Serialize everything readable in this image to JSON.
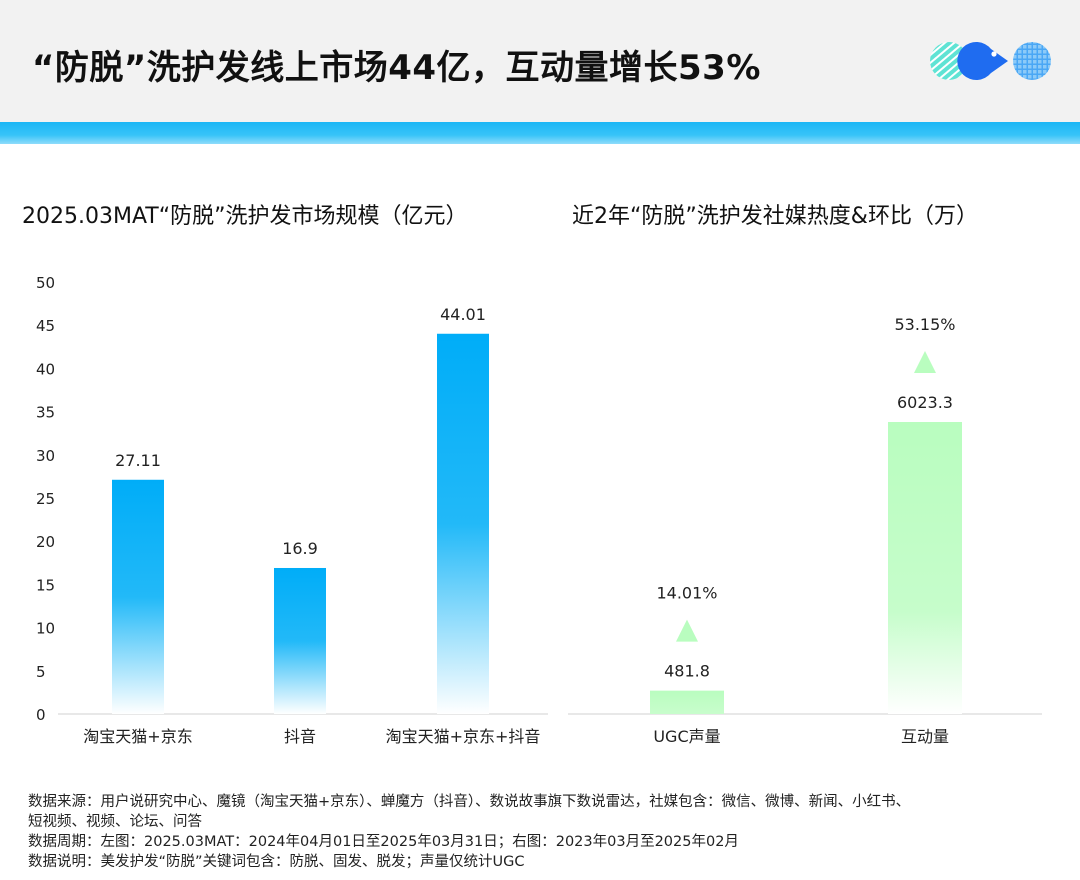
{
  "header": {
    "title": "“防脱”洗护发线上市场44亿，互动量增长53%"
  },
  "colors": {
    "accent_blue": "#00adf8",
    "accent_green": "#b9fdbf",
    "logo_teal": "#5fe3d4",
    "logo_blue": "#1f6cf0",
    "logo_light_blue": "#4aa7f5"
  },
  "chart_data": [
    {
      "type": "bar",
      "title": "2025.03MAT“防脱”洗护发市场规模（亿元）",
      "categories": [
        "淘宝天猫+京东",
        "抖音",
        "淘宝天猫+京东+抖音"
      ],
      "values": [
        27.11,
        16.9,
        44.01
      ],
      "value_labels": [
        "27.11",
        "16.9",
        "44.01"
      ],
      "ylim": [
        0,
        50
      ],
      "yticks": [
        "0",
        "5",
        "10",
        "15",
        "20",
        "25",
        "30",
        "35",
        "40",
        "45",
        "50"
      ],
      "grid": false,
      "color": "#00adf8"
    },
    {
      "type": "bar",
      "title": "近2年“防脱”洗护发社媒热度&环比（万）",
      "categories": [
        "UGC声量",
        "互动量"
      ],
      "values": [
        481.8,
        6023.3
      ],
      "value_labels": [
        "481.8",
        "6023.3"
      ],
      "growth": [
        "14.01%",
        "53.15%"
      ],
      "growth_direction": [
        "up",
        "up"
      ],
      "grid": false,
      "color": "#b9fdbf"
    }
  ],
  "footer": {
    "source_line1": "数据来源：用户说研究中心、魔镜（淘宝天猫+京东）、蝉魔方（抖音）、数说故事旗下数说雷达，社媒包含：微信、微博、新闻、小红书、",
    "source_line2": "短视频、视频、论坛、问答",
    "period": "数据周期：左图：2025.03MAT：2024年04月01日至2025年03月31日；右图：2023年03月至2025年02月",
    "note": "数据说明：美发护发“防脱”关键词包含：防脱、固发、脱发；声量仅统计UGC"
  }
}
